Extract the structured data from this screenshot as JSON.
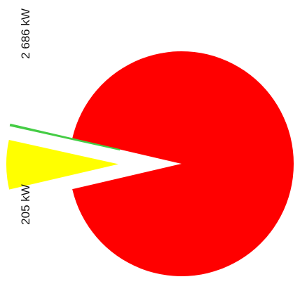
{
  "chart_data": {
    "type": "pie",
    "exploded": true,
    "slices": [
      {
        "value": 2686,
        "unit": "kW",
        "label": "2 686 kW",
        "color": "#ff0000"
      },
      {
        "value": 205,
        "unit": "kW",
        "label": "205 kW",
        "color": "#ffff00"
      },
      {
        "value": 5,
        "unit": "kW",
        "color": "#44cc44"
      }
    ]
  }
}
